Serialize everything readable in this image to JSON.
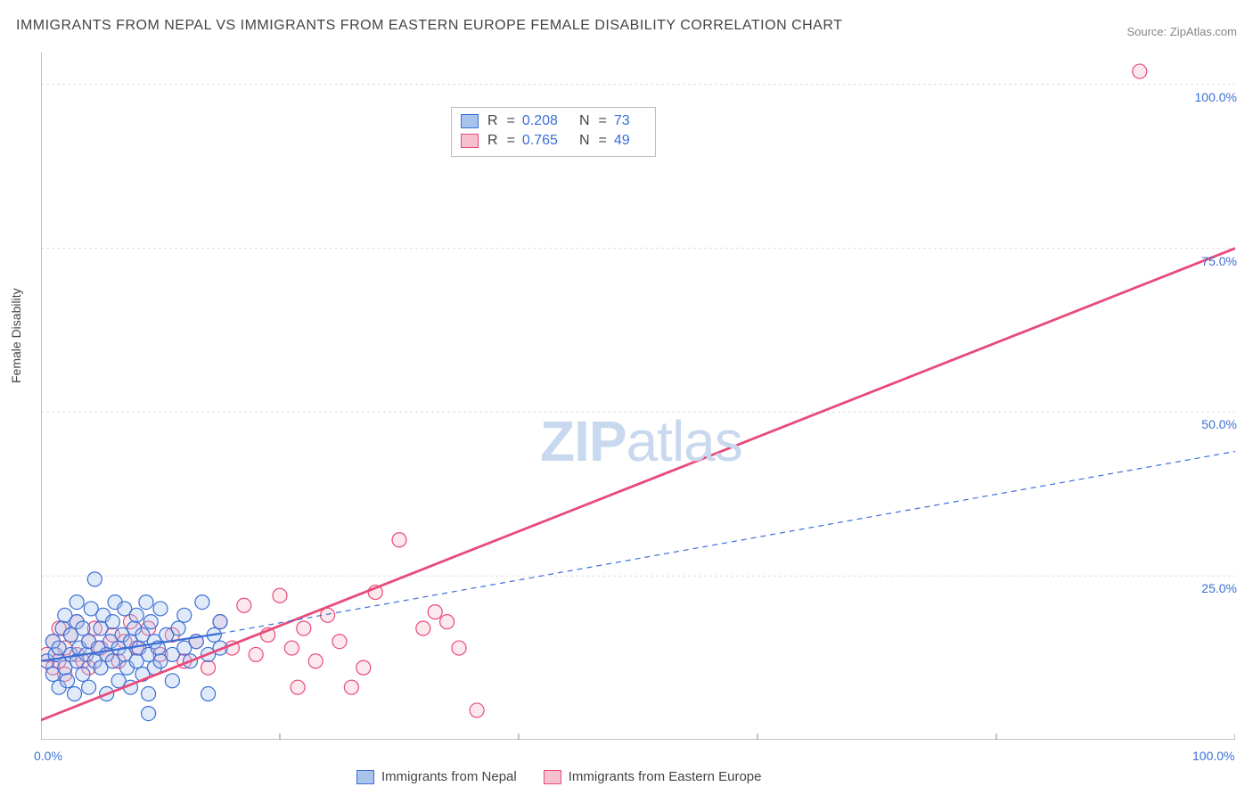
{
  "title": "IMMIGRANTS FROM NEPAL VS IMMIGRANTS FROM EASTERN EUROPE FEMALE DISABILITY CORRELATION CHART",
  "source_label": "Source: ",
  "source_value": "ZipAtlas.com",
  "y_axis_label": "Female Disability",
  "watermark_zip": "ZIP",
  "watermark_atlas": "atlas",
  "chart": {
    "type": "scatter-with-regression",
    "xlim": [
      0,
      100
    ],
    "ylim": [
      0,
      105
    ],
    "background_color": "#ffffff",
    "grid_color": "#dddddd",
    "grid_dash": "3,3",
    "x_ticks": [
      0,
      20,
      40,
      60,
      80,
      100
    ],
    "x_tick_labels": {
      "0": "0.0%",
      "100": "100.0%"
    },
    "y_ticks": [
      25,
      50,
      75,
      100
    ],
    "y_tick_labels": {
      "25": "25.0%",
      "50": "50.0%",
      "75": "75.0%",
      "100": "100.0%"
    },
    "axis_label_color": "#3b6fd6",
    "marker_radius": 8,
    "marker_stroke_width": 1.2,
    "fill_opacity": 0.35,
    "series": [
      {
        "name": "Immigrants from Nepal",
        "color_fill": "#a8c3ec",
        "color_stroke": "#3b6fd6",
        "R": "0.208",
        "N": "73",
        "regression": {
          "solid": {
            "x1": 0,
            "y1": 12,
            "x2": 15,
            "y2": 16.2,
            "width": 2.2,
            "dash": "none"
          },
          "dashed": {
            "x1": 15,
            "y1": 16.2,
            "x2": 100,
            "y2": 44,
            "width": 1.2,
            "dash": "6,5"
          }
        },
        "points": [
          [
            0.5,
            12
          ],
          [
            1,
            10
          ],
          [
            1,
            15
          ],
          [
            1.2,
            13
          ],
          [
            1.5,
            8
          ],
          [
            1.5,
            14
          ],
          [
            1.8,
            17
          ],
          [
            2,
            11
          ],
          [
            2,
            19
          ],
          [
            2.2,
            9
          ],
          [
            2.5,
            13
          ],
          [
            2.5,
            16
          ],
          [
            2.8,
            7
          ],
          [
            3,
            12
          ],
          [
            3,
            18
          ],
          [
            3,
            21
          ],
          [
            3.2,
            14
          ],
          [
            3.5,
            10
          ],
          [
            3.5,
            17
          ],
          [
            3.8,
            13
          ],
          [
            4,
            15
          ],
          [
            4,
            8
          ],
          [
            4.2,
            20
          ],
          [
            4.5,
            12
          ],
          [
            4.5,
            24.5
          ],
          [
            4.8,
            14
          ],
          [
            5,
            11
          ],
          [
            5,
            17
          ],
          [
            5.2,
            19
          ],
          [
            5.5,
            13
          ],
          [
            5.5,
            7
          ],
          [
            5.8,
            15
          ],
          [
            6,
            12
          ],
          [
            6,
            18
          ],
          [
            6.2,
            21
          ],
          [
            6.5,
            14
          ],
          [
            6.5,
            9
          ],
          [
            6.8,
            16
          ],
          [
            7,
            13
          ],
          [
            7,
            20
          ],
          [
            7.2,
            11
          ],
          [
            7.5,
            15
          ],
          [
            7.5,
            8
          ],
          [
            7.8,
            17
          ],
          [
            8,
            12
          ],
          [
            8,
            19
          ],
          [
            8.2,
            14
          ],
          [
            8.5,
            10
          ],
          [
            8.5,
            16
          ],
          [
            8.8,
            21
          ],
          [
            9,
            13
          ],
          [
            9,
            7
          ],
          [
            9.2,
            18
          ],
          [
            9.5,
            15
          ],
          [
            9.5,
            11
          ],
          [
            9.8,
            14
          ],
          [
            10,
            12
          ],
          [
            10,
            20
          ],
          [
            10.5,
            16
          ],
          [
            11,
            13
          ],
          [
            11,
            9
          ],
          [
            11.5,
            17
          ],
          [
            12,
            14
          ],
          [
            12,
            19
          ],
          [
            12.5,
            12
          ],
          [
            13,
            15
          ],
          [
            13.5,
            21
          ],
          [
            14,
            13
          ],
          [
            14,
            7
          ],
          [
            14.5,
            16
          ],
          [
            15,
            14
          ],
          [
            15,
            18
          ],
          [
            9,
            4
          ]
        ]
      },
      {
        "name": "Immigrants from Eastern Europe",
        "color_fill": "#f6c1cf",
        "color_stroke": "#e84a7a",
        "R": "0.765",
        "N": "49",
        "regression": {
          "solid": {
            "x1": 0,
            "y1": 3,
            "x2": 100,
            "y2": 75,
            "width": 2.8,
            "dash": "none"
          }
        },
        "points": [
          [
            0.5,
            13
          ],
          [
            1,
            11
          ],
          [
            1,
            15
          ],
          [
            1.5,
            12
          ],
          [
            1.5,
            17
          ],
          [
            2,
            14
          ],
          [
            2,
            10
          ],
          [
            2.5,
            16
          ],
          [
            3,
            13
          ],
          [
            3,
            18
          ],
          [
            3.5,
            12
          ],
          [
            4,
            15
          ],
          [
            4,
            11
          ],
          [
            4.5,
            17
          ],
          [
            5,
            14
          ],
          [
            5.5,
            13
          ],
          [
            6,
            16
          ],
          [
            6.5,
            12
          ],
          [
            7,
            15
          ],
          [
            7.5,
            18
          ],
          [
            8,
            14
          ],
          [
            9,
            17
          ],
          [
            10,
            13
          ],
          [
            11,
            16
          ],
          [
            12,
            12
          ],
          [
            13,
            15
          ],
          [
            14,
            11
          ],
          [
            15,
            18
          ],
          [
            16,
            14
          ],
          [
            17,
            20.5
          ],
          [
            18,
            13
          ],
          [
            19,
            16
          ],
          [
            20,
            22
          ],
          [
            21,
            14
          ],
          [
            21.5,
            8
          ],
          [
            22,
            17
          ],
          [
            23,
            12
          ],
          [
            24,
            19
          ],
          [
            25,
            15
          ],
          [
            26,
            8
          ],
          [
            27,
            11
          ],
          [
            28,
            22.5
          ],
          [
            30,
            30.5
          ],
          [
            32,
            17
          ],
          [
            33,
            19.5
          ],
          [
            34,
            18
          ],
          [
            35,
            14
          ],
          [
            36.5,
            4.5
          ],
          [
            92,
            102
          ]
        ]
      }
    ]
  },
  "legend": {
    "series_a": "Immigrants from Nepal",
    "series_b": "Immigrants from Eastern Europe"
  },
  "stats_labels": {
    "R": "R",
    "eq": "=",
    "N": "N"
  }
}
